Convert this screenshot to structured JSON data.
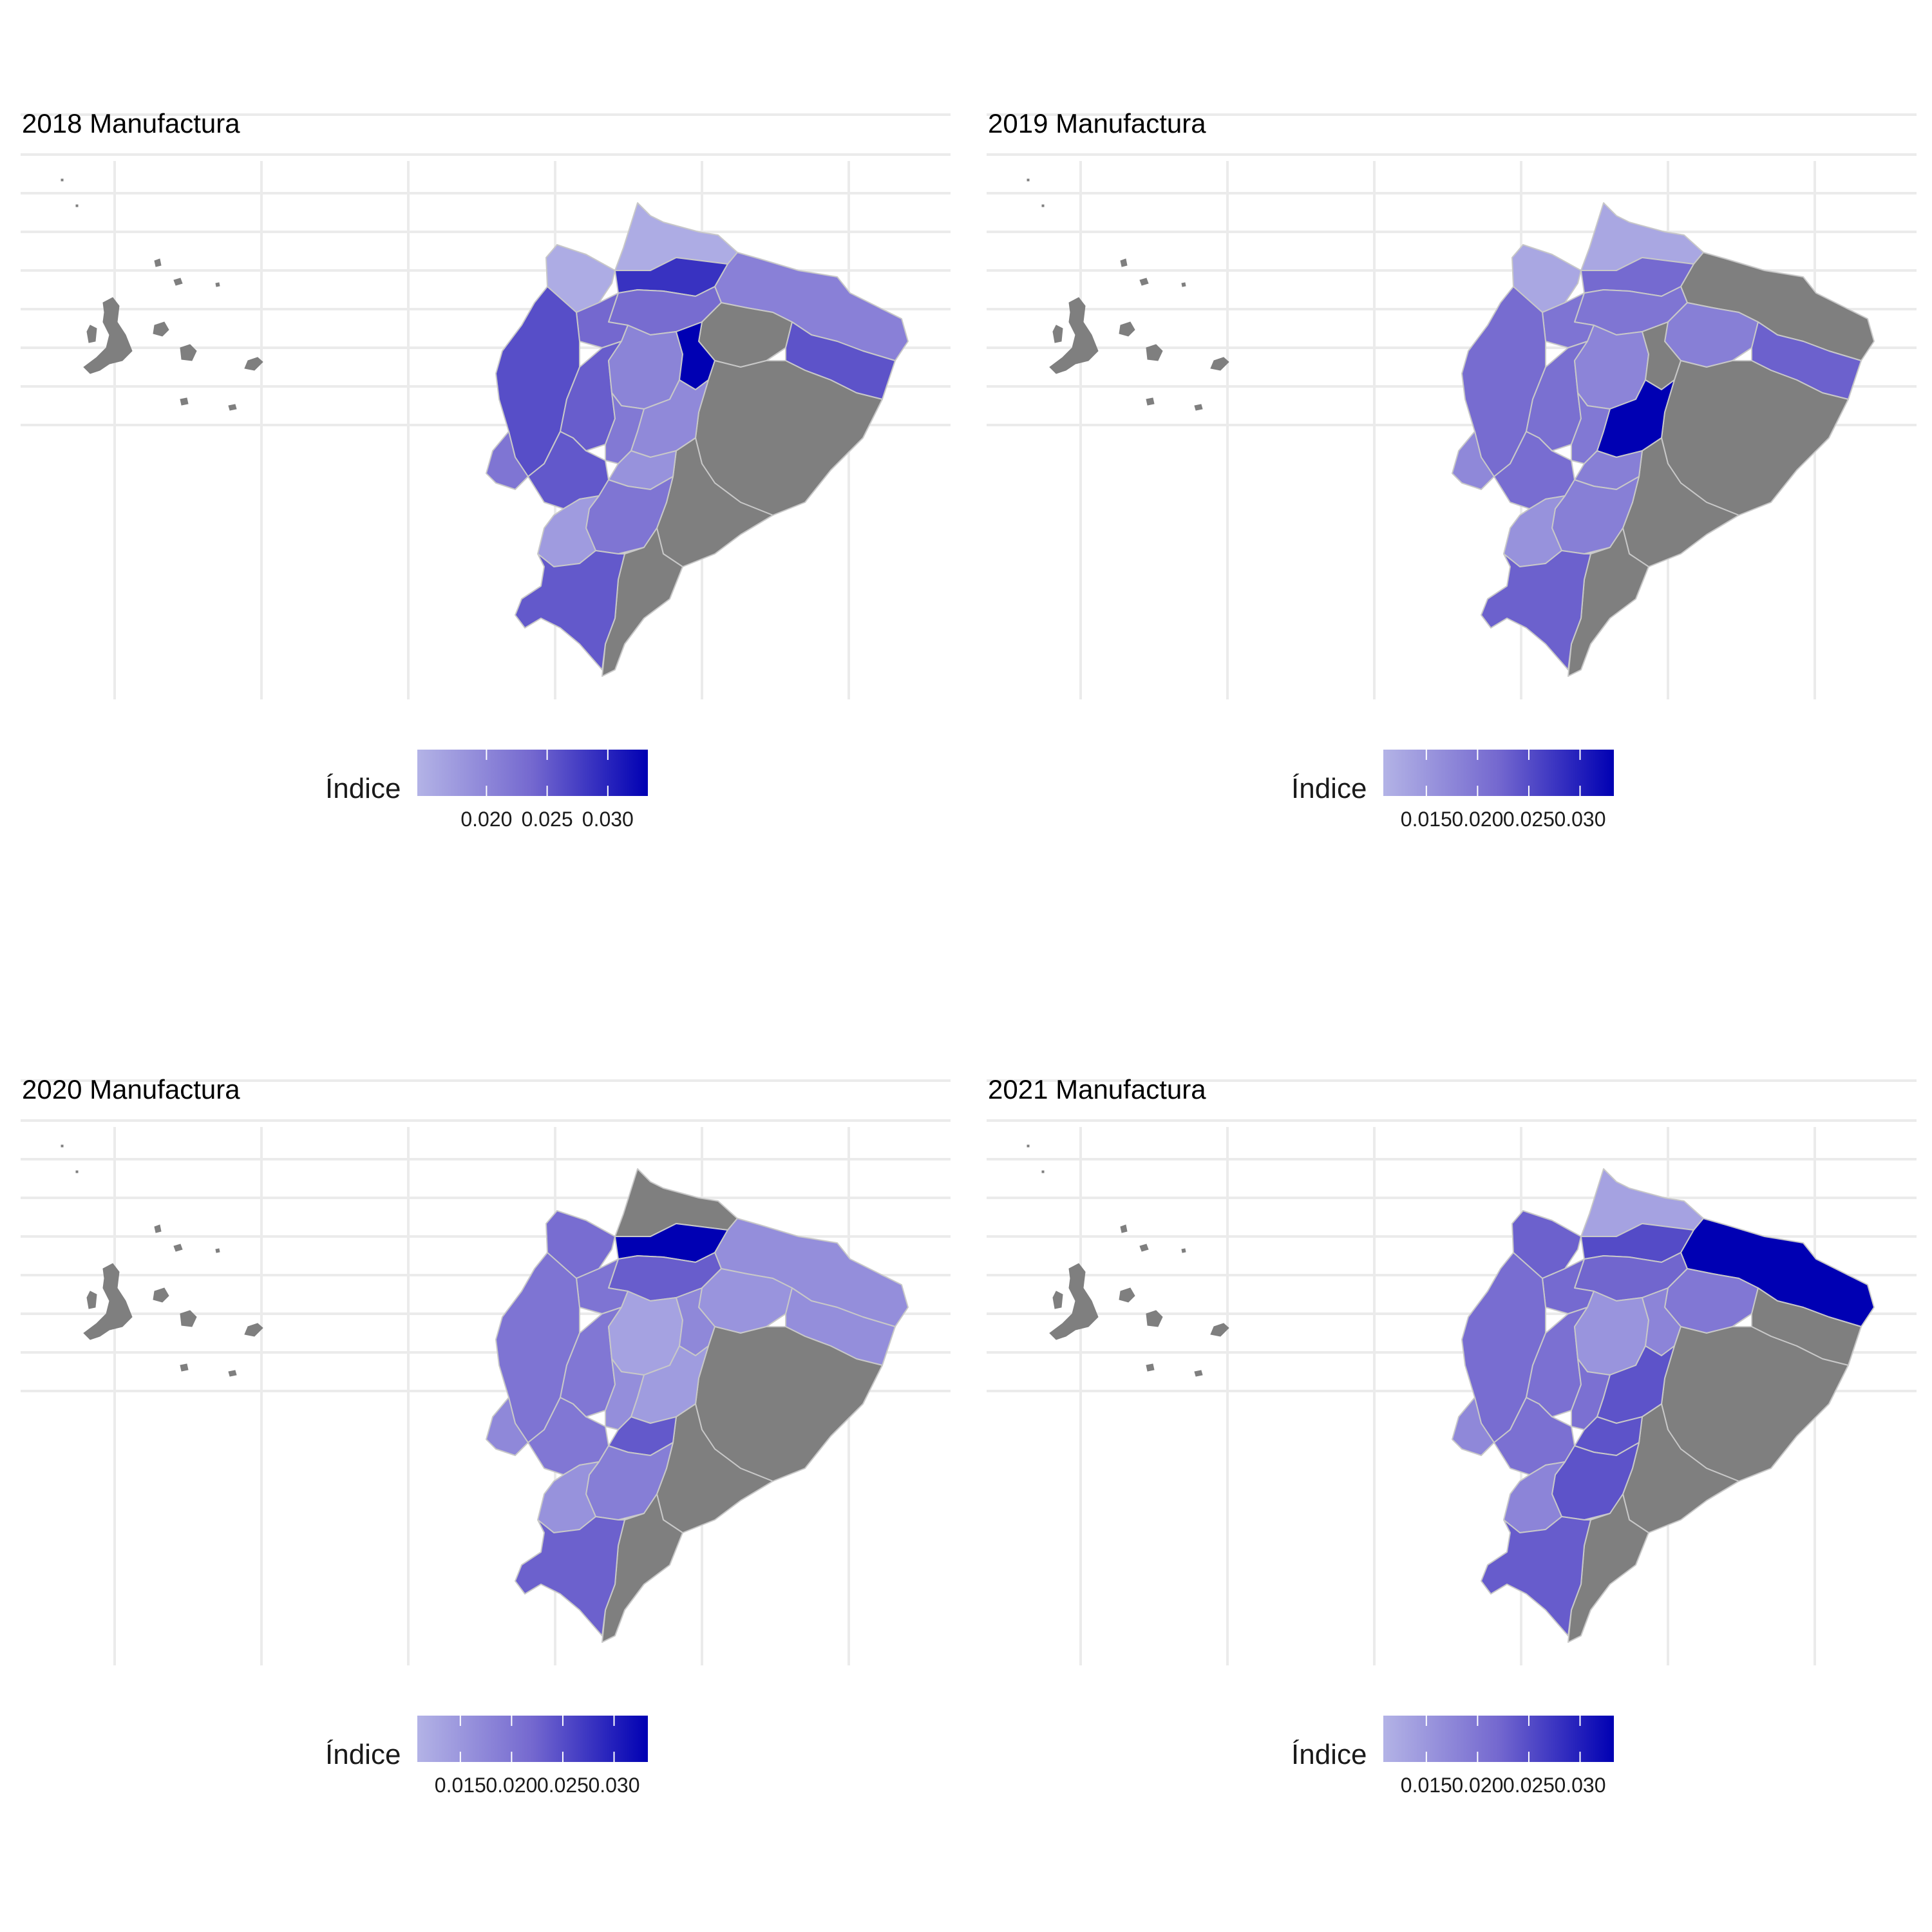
{
  "colors": {
    "background": "#ffffff",
    "grid": "#ebebeb",
    "missing": "#7f7f7f",
    "scale_low": "#b3b3e6",
    "scale_mid": "#7468cf",
    "scale_high": "#0000b3",
    "province_border": "#c8c8c8"
  },
  "chart_data": [
    {
      "type": "choropleth",
      "title": "2018 Manufactura",
      "legend": {
        "title": "Índice",
        "ticks": [
          "0.020",
          "0.025",
          "0.030"
        ],
        "tick_values": [
          0.02,
          0.025,
          0.03
        ],
        "range": [
          0.0143,
          0.0333
        ]
      },
      "regions": {
        "esmeraldas": 0.0152,
        "carchi": 0.0152,
        "imbabura": 0.0287,
        "manabi": 0.0262,
        "santo_domingo": 0.0238,
        "pichincha": 0.0233,
        "sucumbios": 0.0207,
        "los_rios": 0.0248,
        "cotopaxi": 0.0203,
        "tungurahua": 0.0333,
        "napo": null,
        "orellana": 0.0257,
        "santa_elena": 0.0222,
        "guayas": 0.0253,
        "bolivar": 0.0217,
        "chimborazo": 0.0196,
        "pastaza": null,
        "canar": 0.0185,
        "azuay": 0.0222,
        "morona_santiago": null,
        "el_oro": 0.0173,
        "loja": 0.0252,
        "zamora": null,
        "galapagos": null
      }
    },
    {
      "type": "choropleth",
      "title": "2019 Manufactura",
      "legend": {
        "title": "Índice",
        "ticks": [
          "0.015",
          "0.020",
          "0.025",
          "0.030"
        ],
        "tick_values": [
          0.015,
          0.02,
          0.025,
          0.03
        ],
        "range": [
          0.0108,
          0.0333
        ]
      },
      "regions": {
        "esmeraldas": 0.0126,
        "carchi": 0.0126,
        "imbabura": 0.0218,
        "manabi": 0.0215,
        "santo_domingo": 0.0203,
        "pichincha": 0.0201,
        "sucumbios": null,
        "los_rios": 0.0209,
        "cotopaxi": 0.0178,
        "tungurahua": null,
        "napo": 0.0186,
        "orellana": 0.0228,
        "santa_elena": 0.0172,
        "guayas": 0.0213,
        "bolivar": 0.0197,
        "chimborazo": 0.0333,
        "pastaza": null,
        "canar": 0.0186,
        "azuay": 0.0186,
        "morona_santiago": null,
        "el_oro": 0.0158,
        "loja": 0.0228,
        "zamora": null,
        "galapagos": null
      }
    },
    {
      "type": "choropleth",
      "title": "2020 Manufactura",
      "legend": {
        "title": "Índice",
        "ticks": [
          "0.015",
          "0.020",
          "0.025",
          "0.030"
        ],
        "tick_values": [
          0.015,
          0.02,
          0.025,
          0.03
        ],
        "range": [
          0.0108,
          0.0333
        ]
      },
      "regions": {
        "esmeraldas": 0.0213,
        "carchi": null,
        "imbabura": 0.0333,
        "manabi": 0.0203,
        "santo_domingo": 0.0203,
        "pichincha": 0.0232,
        "sucumbios": 0.0163,
        "los_rios": 0.0198,
        "cotopaxi": 0.0133,
        "tungurahua": 0.0172,
        "napo": 0.0154,
        "orellana": 0.0163,
        "santa_elena": 0.0172,
        "guayas": 0.0198,
        "bolivar": 0.0163,
        "chimborazo": 0.0143,
        "pastaza": null,
        "canar": 0.0237,
        "azuay": 0.0188,
        "morona_santiago": null,
        "el_oro": 0.0158,
        "loja": 0.0228,
        "zamora": null,
        "galapagos": null
      }
    },
    {
      "type": "choropleth",
      "title": "2021 Manufactura",
      "legend": {
        "title": "Índice",
        "ticks": [
          "0.015",
          "0.020",
          "0.025",
          "0.030"
        ],
        "tick_values": [
          0.015,
          0.02,
          0.025,
          0.03
        ],
        "range": [
          0.0108,
          0.0333
        ]
      },
      "regions": {
        "esmeraldas": 0.0228,
        "carchi": 0.0133,
        "imbabura": 0.0252,
        "manabi": 0.0213,
        "santo_domingo": 0.0218,
        "pichincha": 0.0223,
        "sucumbios": 0.0333,
        "los_rios": 0.0208,
        "cotopaxi": 0.0154,
        "tungurahua": 0.0178,
        "napo": 0.0198,
        "orellana": null,
        "santa_elena": 0.0172,
        "guayas": 0.0208,
        "bolivar": 0.0208,
        "chimborazo": 0.0243,
        "pastaza": null,
        "canar": 0.0243,
        "azuay": 0.0243,
        "morona_santiago": null,
        "el_oro": 0.0178,
        "loja": 0.0233,
        "zamora": null,
        "galapagos": null
      }
    }
  ]
}
